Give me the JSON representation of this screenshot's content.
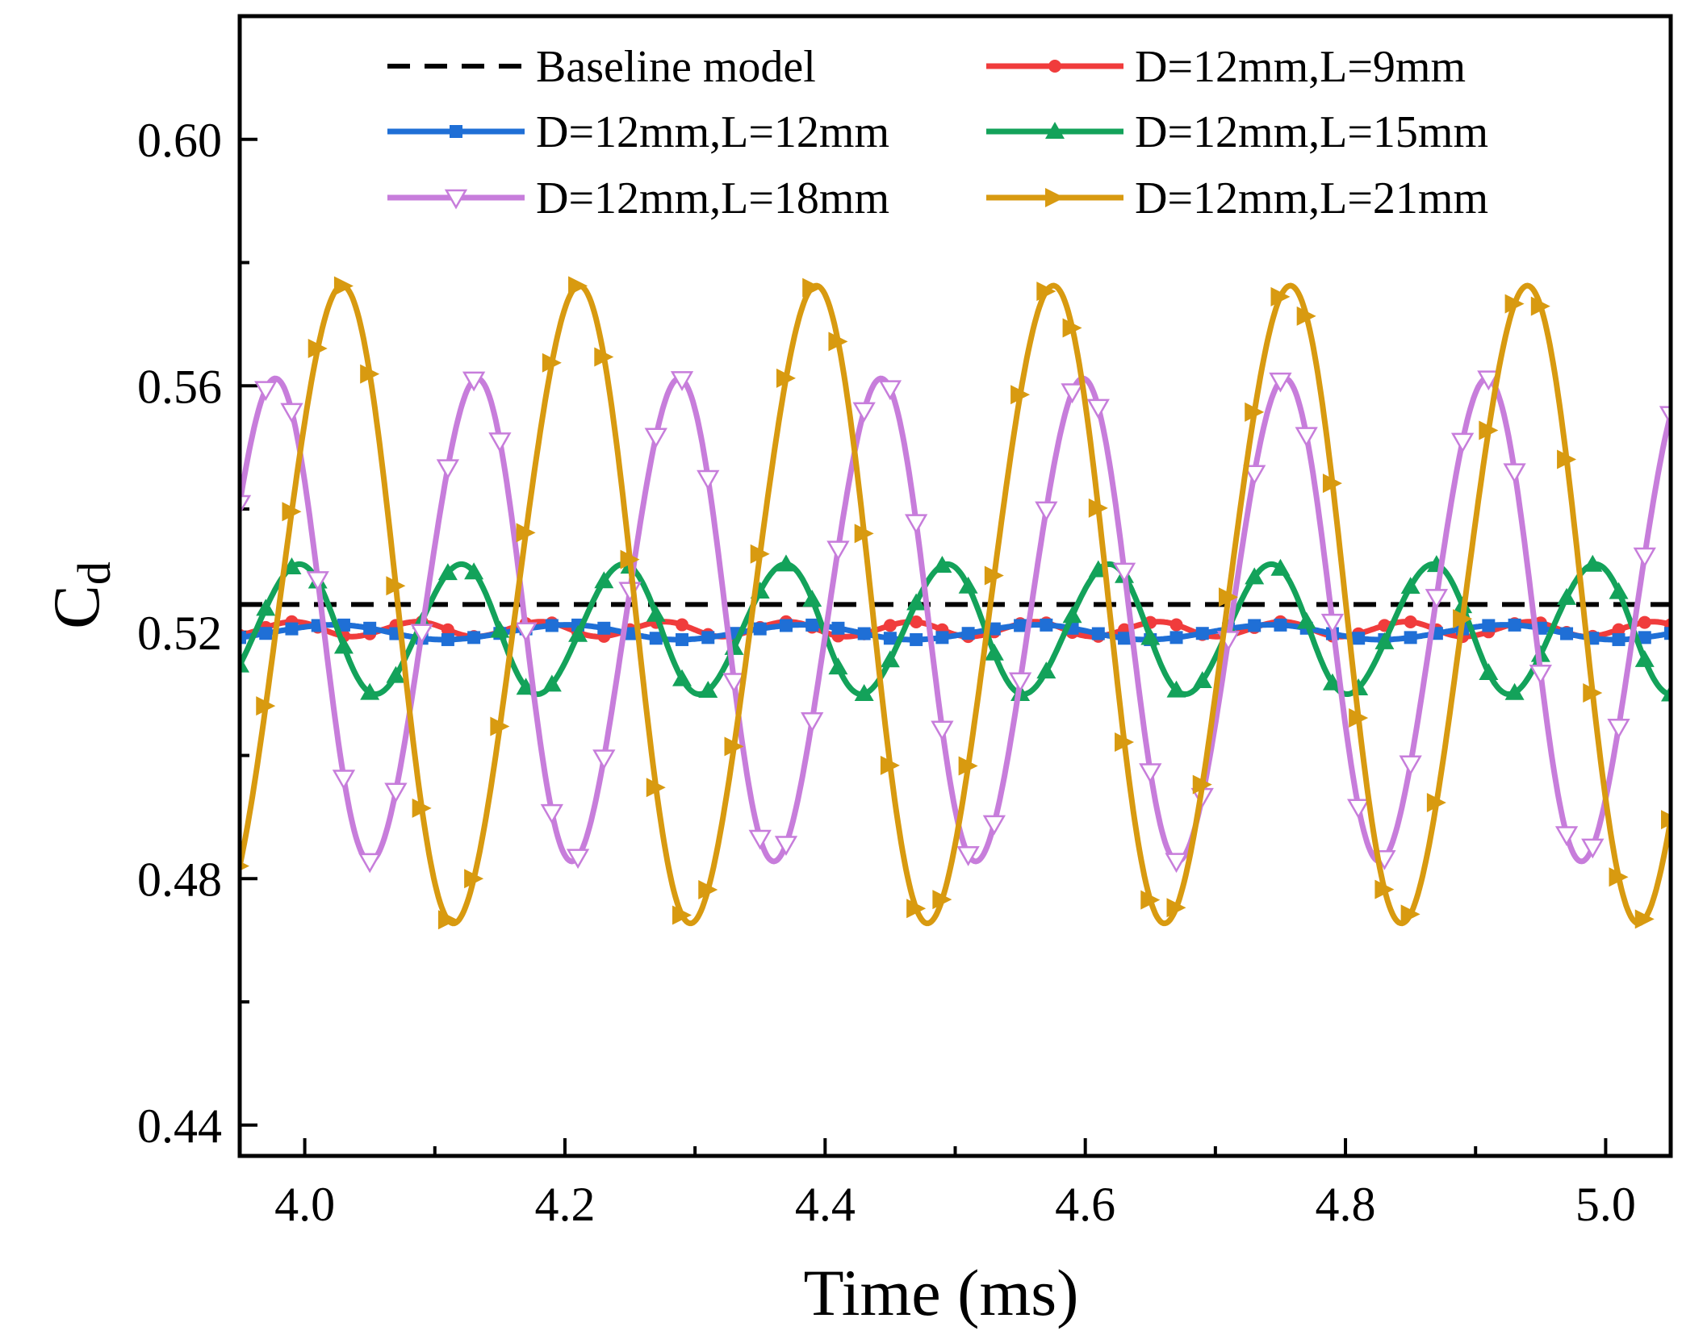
{
  "chart_data": {
    "type": "line",
    "title": "",
    "xlabel": "Time (ms)",
    "ylabel_main": "C",
    "ylabel_sub": "d",
    "xlim": [
      3.95,
      5.05
    ],
    "ylim": [
      0.435,
      0.62
    ],
    "x_ticks": [
      4.0,
      4.2,
      4.4,
      4.6,
      4.8,
      5.0
    ],
    "x_tick_labels": [
      "4.0",
      "4.2",
      "4.4",
      "4.6",
      "4.8",
      "5.0"
    ],
    "x_minor_ticks": [
      4.1,
      4.3,
      4.5,
      4.7,
      4.9
    ],
    "y_ticks": [
      0.44,
      0.48,
      0.52,
      0.56,
      0.6
    ],
    "y_tick_labels": [
      "0.44",
      "0.48",
      "0.52",
      "0.56",
      "0.60"
    ],
    "y_minor_ticks": [
      0.46,
      0.5,
      0.54,
      0.58
    ],
    "legend_position": "top",
    "series": [
      {
        "name": "Baseline model",
        "color": "#000000",
        "style": "dashed",
        "marker": "none",
        "model": {
          "mean": 0.5245,
          "amp": 0,
          "period": 1,
          "t0": 0
        }
      },
      {
        "name": "D=12mm,L=9mm",
        "color": "#f03c3c",
        "style": "solid",
        "marker": "circle",
        "model": {
          "mean": 0.5205,
          "amp": 0.0012,
          "period": 0.095,
          "t0": 3.99
        }
      },
      {
        "name": "D=12mm,L=12mm",
        "color": "#1f6fd6",
        "style": "solid",
        "marker": "square",
        "model": {
          "mean": 0.52,
          "amp": 0.0012,
          "period": 0.18,
          "t0": 4.02
        }
      },
      {
        "name": "D=12mm,L=15mm",
        "color": "#13a25a",
        "style": "solid",
        "marker": "triangle-up",
        "model": {
          "mean": 0.5205,
          "amp": 0.0105,
          "period": 0.1245,
          "t0": 3.994
        }
      },
      {
        "name": "D=12mm,L=18mm",
        "color": "#c77ddb",
        "style": "solid",
        "marker": "triangle-down-open",
        "model": {
          "mean": 0.522,
          "amp": 0.039,
          "period": 0.1552,
          "t0": 3.975
        }
      },
      {
        "name": "D=12mm,L=21mm",
        "color": "#d89a10",
        "style": "solid",
        "marker": "triangle-right",
        "model": {
          "mean": 0.5245,
          "amp": 0.0515,
          "period": 0.1822,
          "t0": 4.026
        }
      }
    ]
  }
}
